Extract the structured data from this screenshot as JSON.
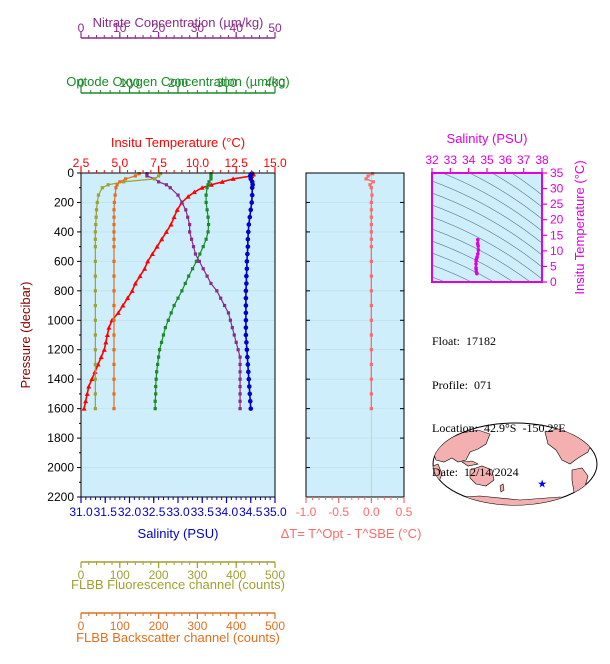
{
  "colors": {
    "nitrate": "#8b2a8b",
    "oxygen": "#1a8a2a",
    "temperature": "#ff0000",
    "salinity": "#0000cc",
    "fluorescence": "#a0a030",
    "backscatter": "#e07020",
    "delta": "#ff6a6a",
    "ts": "#e000e0",
    "plot_bg": "#cdeefa"
  },
  "chart_data": [
    {
      "type": "line",
      "panel": "profiles",
      "ylabel": "Pressure (decibar)",
      "ylim": [
        0,
        2200
      ],
      "yticks": [
        0,
        200,
        400,
        600,
        800,
        1000,
        1200,
        1400,
        1600,
        1800,
        2000,
        2200
      ],
      "y_inverted": true,
      "axes": [
        {
          "key": "temperature",
          "label": "Insitu Temperature (°C)",
          "range": [
            2.5,
            15.0
          ],
          "ticks": [
            "2.5",
            "5.0",
            "7.5",
            "10.0",
            "12.5",
            "15.0"
          ],
          "tick_values": [
            2.5,
            5.0,
            7.5,
            10.0,
            12.5,
            15.0
          ],
          "position": "top"
        },
        {
          "key": "oxygen",
          "label": "Optode Oxygen Concentration (µm/kg)",
          "range": [
            0,
            400
          ],
          "ticks": [
            "0",
            "100",
            "200",
            "300",
            "400"
          ],
          "tick_values": [
            0,
            100,
            200,
            300,
            400
          ],
          "position": "top"
        },
        {
          "key": "nitrate",
          "label": "Nitrate Concentration (µm/kg)",
          "range": [
            0,
            50
          ],
          "ticks": [
            "0",
            "10",
            "20",
            "30",
            "40",
            "50"
          ],
          "tick_values": [
            0,
            10,
            20,
            30,
            40,
            50
          ],
          "position": "top"
        },
        {
          "key": "salinity",
          "label": "Salinity (PSU)",
          "range": [
            31.0,
            35.0
          ],
          "ticks": [
            "31.0",
            "31.5",
            "32.0",
            "32.5",
            "33.0",
            "33.5",
            "34.0",
            "34.5",
            "35.0"
          ],
          "tick_values": [
            31.0,
            31.5,
            32.0,
            32.5,
            33.0,
            33.5,
            34.0,
            34.5,
            35.0
          ],
          "position": "bottom"
        },
        {
          "key": "fluorescence",
          "label": "FLBB Fluorescence channel (counts)",
          "range": [
            0,
            500
          ],
          "ticks": [
            "0",
            "100",
            "200",
            "300",
            "400",
            "500"
          ],
          "tick_values": [
            0,
            100,
            200,
            300,
            400,
            500
          ],
          "position": "bottom"
        },
        {
          "key": "backscatter",
          "label": "FLBB Backscatter channel (counts)",
          "range": [
            0,
            500
          ],
          "ticks": [
            "0",
            "100",
            "200",
            "300",
            "400",
            "500"
          ],
          "tick_values": [
            0,
            100,
            200,
            300,
            400,
            500
          ],
          "position": "bottom"
        }
      ],
      "series": [
        {
          "key": "temperature",
          "pressure": [
            5,
            10,
            20,
            40,
            60,
            80,
            100,
            130,
            160,
            200,
            250,
            300,
            350,
            400,
            450,
            500,
            550,
            600,
            650,
            700,
            750,
            800,
            850,
            900,
            950,
            1000,
            1050,
            1100,
            1150,
            1200,
            1250,
            1300,
            1350,
            1400,
            1450,
            1500,
            1550,
            1600
          ],
          "values": [
            13.6,
            13.6,
            13.5,
            12.3,
            11.6,
            10.9,
            10.3,
            9.8,
            9.4,
            9.0,
            8.7,
            8.5,
            8.3,
            8.0,
            7.7,
            7.4,
            7.1,
            6.8,
            6.6,
            6.3,
            6.0,
            5.8,
            5.5,
            5.2,
            4.9,
            4.5,
            4.3,
            4.2,
            4.1,
            4.0,
            3.8,
            3.6,
            3.4,
            3.2,
            3.0,
            2.9,
            2.8,
            2.7
          ]
        },
        {
          "key": "salinity",
          "pressure": [
            5,
            10,
            20,
            40,
            60,
            80,
            100,
            150,
            200,
            250,
            300,
            350,
            400,
            450,
            500,
            550,
            600,
            650,
            700,
            750,
            800,
            850,
            900,
            950,
            1000,
            1050,
            1100,
            1150,
            1200,
            1250,
            1300,
            1350,
            1400,
            1450,
            1500,
            1550,
            1600
          ],
          "values": [
            34.52,
            34.5,
            34.49,
            34.5,
            34.53,
            34.54,
            34.53,
            34.53,
            34.52,
            34.5,
            34.48,
            34.46,
            34.45,
            34.44,
            34.44,
            34.43,
            34.42,
            34.42,
            34.41,
            34.41,
            34.4,
            34.4,
            34.4,
            34.4,
            34.4,
            34.4,
            34.4,
            34.41,
            34.42,
            34.43,
            34.44,
            34.45,
            34.46,
            34.47,
            34.48,
            34.49,
            34.5
          ]
        },
        {
          "key": "oxygen",
          "pressure": [
            5,
            20,
            40,
            60,
            80,
            100,
            150,
            200,
            250,
            300,
            350,
            400,
            450,
            500,
            550,
            600,
            650,
            700,
            750,
            800,
            850,
            900,
            950,
            1000,
            1050,
            1100,
            1150,
            1200,
            1250,
            1300,
            1350,
            1400,
            1450,
            1500,
            1550,
            1600
          ],
          "values": [
            268,
            268,
            268,
            264,
            262,
            260,
            258,
            258,
            260,
            262,
            263,
            262,
            258,
            252,
            245,
            238,
            230,
            222,
            215,
            208,
            200,
            192,
            186,
            180,
            174,
            170,
            166,
            162,
            160,
            158,
            156,
            155,
            154,
            154,
            153,
            153
          ]
        },
        {
          "key": "nitrate",
          "pressure": [
            5,
            20,
            40,
            60,
            80,
            100,
            150,
            200,
            250,
            300,
            350,
            400,
            450,
            500,
            550,
            600,
            650,
            700,
            750,
            800,
            850,
            900,
            950,
            1000,
            1050,
            1100,
            1150,
            1200,
            1250,
            1300,
            1350,
            1400,
            1450,
            1500,
            1550,
            1600
          ],
          "values": [
            17,
            17,
            19,
            20,
            22,
            23,
            25,
            26,
            27,
            27.5,
            28,
            28,
            28.5,
            29,
            29.5,
            30.5,
            31.5,
            32.5,
            33.5,
            35,
            36,
            37,
            38,
            38.5,
            39,
            39.5,
            40,
            40.5,
            41,
            41,
            41,
            41,
            41,
            41,
            41,
            41
          ]
        },
        {
          "key": "fluorescence",
          "pressure": [
            5,
            20,
            40,
            60,
            80,
            100,
            150,
            200,
            250,
            300,
            350,
            400,
            450,
            500,
            600,
            700,
            800,
            900,
            1000,
            1100,
            1200,
            1300,
            1400,
            1500,
            1600
          ],
          "values": [
            205,
            200,
            190,
            110,
            70,
            55,
            45,
            42,
            40,
            39,
            38,
            37,
            37,
            37,
            37,
            37,
            37,
            37,
            37,
            37,
            37,
            37,
            37,
            37,
            37
          ]
        },
        {
          "key": "backscatter",
          "pressure": [
            5,
            20,
            40,
            60,
            80,
            100,
            150,
            200,
            250,
            300,
            350,
            400,
            450,
            500,
            600,
            700,
            800,
            900,
            1000,
            1100,
            1200,
            1300,
            1400,
            1500,
            1600
          ],
          "values": [
            150,
            140,
            115,
            100,
            93,
            90,
            88,
            86,
            85,
            85,
            85,
            85,
            85,
            85,
            85,
            85,
            85,
            85,
            85,
            85,
            85,
            85,
            85,
            85,
            85
          ]
        }
      ]
    },
    {
      "type": "scatter",
      "panel": "delta",
      "xlabel": "ΔT= T^Opt - T^SBE (°C)",
      "xlim": [
        -1.0,
        0.5
      ],
      "xticks": [
        "-1.0",
        "-0.5",
        "0.0",
        "0.5"
      ],
      "xtick_values": [
        -1.0,
        -0.5,
        0.0,
        0.5
      ],
      "ylim": [
        0,
        2200
      ],
      "pressure": [
        5,
        20,
        40,
        60,
        80,
        100,
        150,
        200,
        250,
        300,
        350,
        400,
        450,
        500,
        600,
        700,
        800,
        900,
        1000,
        1100,
        1200,
        1300,
        1400,
        1500,
        1600
      ],
      "values": [
        0.02,
        -0.05,
        -0.08,
        0.03,
        -0.02,
        0.0,
        0.01,
        0.0,
        0.0,
        0.0,
        0.0,
        0.0,
        0.0,
        0.0,
        0.0,
        0.0,
        0.0,
        0.0,
        0.0,
        0.0,
        0.0,
        0.0,
        0.0,
        0.0,
        0.0
      ]
    },
    {
      "type": "scatter",
      "panel": "ts",
      "xlabel": "Salinity (PSU)",
      "ylabel": "Insitu Temperature (°C)",
      "xlim": [
        32,
        38
      ],
      "ylim": [
        0,
        35
      ],
      "xticks": [
        "32",
        "33",
        "34",
        "35",
        "36",
        "37",
        "38"
      ],
      "xtick_values": [
        32,
        33,
        34,
        35,
        36,
        37,
        38
      ],
      "yticks": [
        "0",
        "5",
        "10",
        "15",
        "20",
        "25",
        "30",
        "35"
      ],
      "ytick_values": [
        0,
        5,
        10,
        15,
        20,
        25,
        30,
        35
      ],
      "salinity": [
        34.45,
        34.42,
        34.41,
        34.4,
        34.4,
        34.41,
        34.43,
        34.46,
        34.5,
        34.53,
        34.52,
        34.49,
        34.5
      ],
      "temperature": [
        2.7,
        3.2,
        4.0,
        4.5,
        5.8,
        6.8,
        7.4,
        8.0,
        9.0,
        10.3,
        11.6,
        12.3,
        13.6
      ]
    }
  ],
  "info": {
    "float": "Float:  17182",
    "profile": "Profile:  071",
    "location": "Location:  42.9°S  -150.2°E",
    "date": "Date:  12/14/2024"
  },
  "map": {
    "marker_lon": -150.2,
    "marker_lat": -42.9
  }
}
